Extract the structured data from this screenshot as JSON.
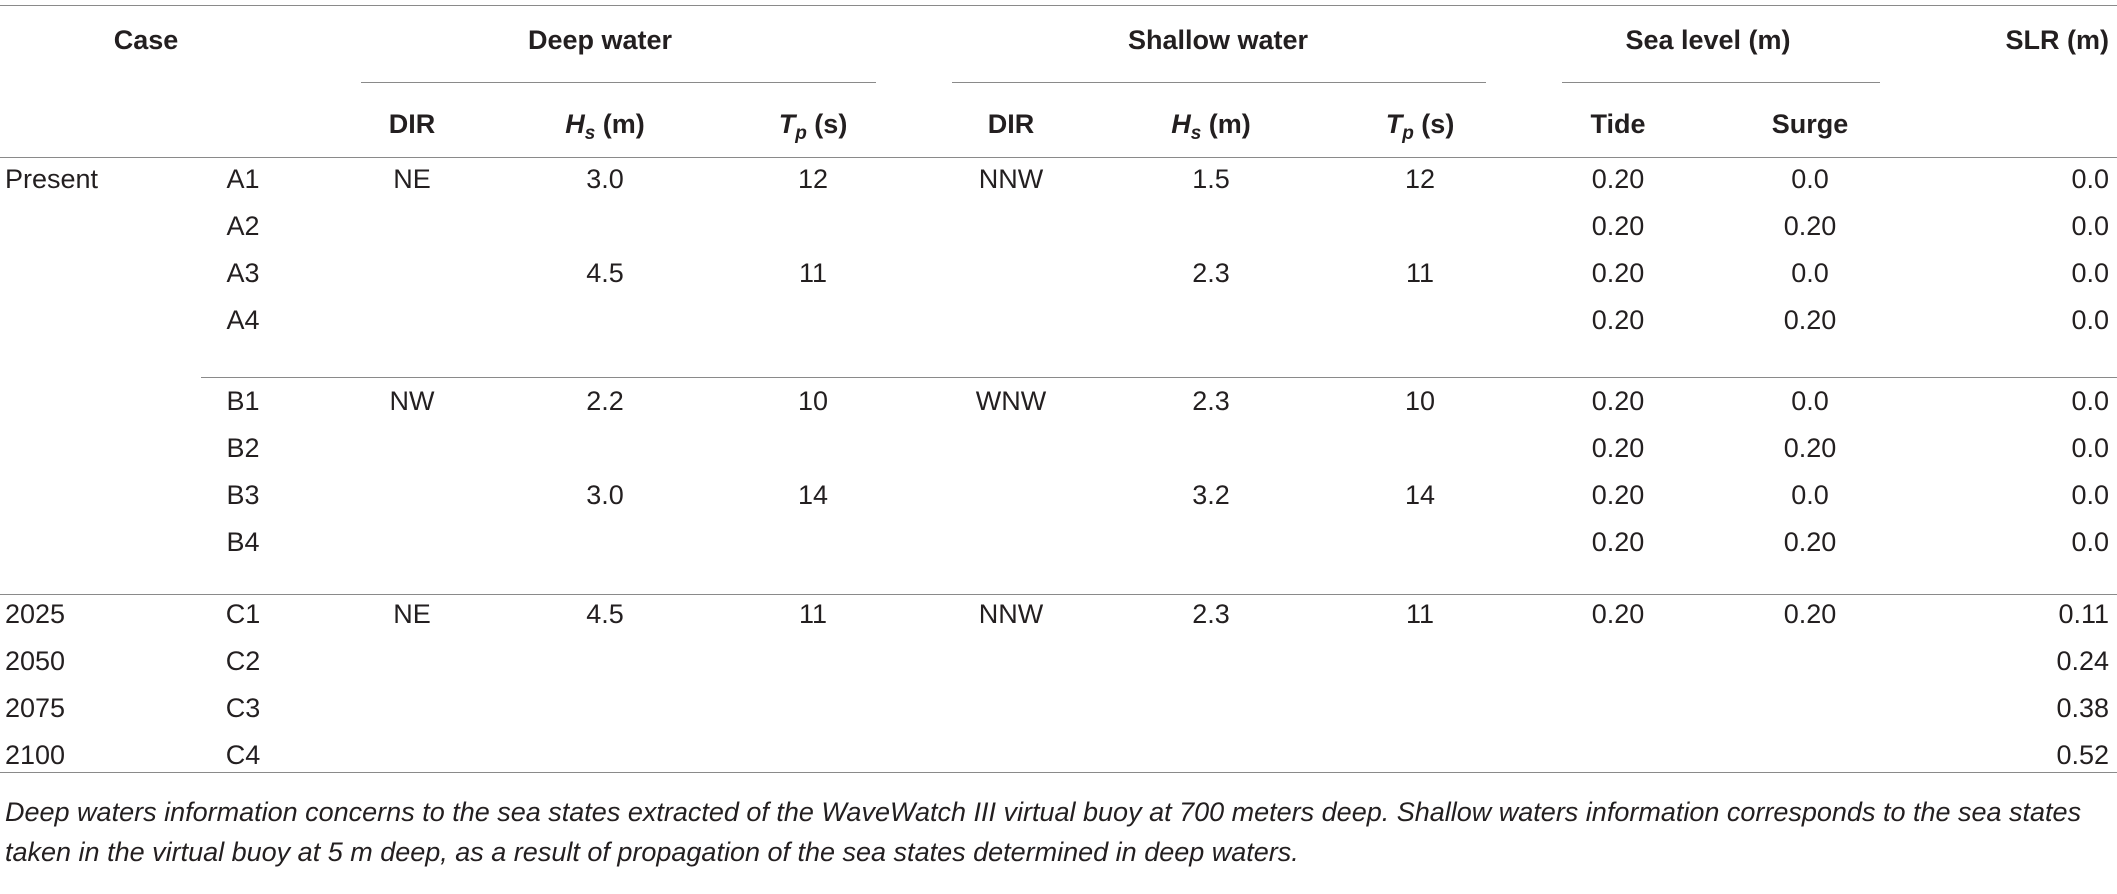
{
  "headers": {
    "case": "Case",
    "deep_water": "Deep water",
    "shallow_water": "Shallow water",
    "sea_level": "Sea level (m)",
    "slr": "SLR (m)",
    "dir": "DIR",
    "hs_var": "H",
    "hs_sub": "s",
    "hs_unit": " (m)",
    "tp_var": "T",
    "tp_sub": "p",
    "tp_unit": " (s)",
    "tide": "Tide",
    "surge": "Surge"
  },
  "rows": [
    {
      "period": "Present",
      "id": "A1",
      "deep_dir": "NE",
      "deep_hs": "3.0",
      "deep_tp": "12",
      "sh_dir": "NNW",
      "sh_hs": "1.5",
      "sh_tp": "12",
      "tide": "0.20",
      "surge": "0.0",
      "slr": "0.0"
    },
    {
      "period": "",
      "id": "A2",
      "deep_dir": "",
      "deep_hs": "",
      "deep_tp": "",
      "sh_dir": "",
      "sh_hs": "",
      "sh_tp": "",
      "tide": "0.20",
      "surge": "0.20",
      "slr": "0.0"
    },
    {
      "period": "",
      "id": "A3",
      "deep_dir": "",
      "deep_hs": "4.5",
      "deep_tp": "11",
      "sh_dir": "",
      "sh_hs": "2.3",
      "sh_tp": "11",
      "tide": "0.20",
      "surge": "0.0",
      "slr": "0.0"
    },
    {
      "period": "",
      "id": "A4",
      "deep_dir": "",
      "deep_hs": "",
      "deep_tp": "",
      "sh_dir": "",
      "sh_hs": "",
      "sh_tp": "",
      "tide": "0.20",
      "surge": "0.20",
      "slr": "0.0"
    },
    {
      "period": "",
      "id": "B1",
      "deep_dir": "NW",
      "deep_hs": "2.2",
      "deep_tp": "10",
      "sh_dir": "WNW",
      "sh_hs": "2.3",
      "sh_tp": "10",
      "tide": "0.20",
      "surge": "0.0",
      "slr": "0.0"
    },
    {
      "period": "",
      "id": "B2",
      "deep_dir": "",
      "deep_hs": "",
      "deep_tp": "",
      "sh_dir": "",
      "sh_hs": "",
      "sh_tp": "",
      "tide": "0.20",
      "surge": "0.20",
      "slr": "0.0"
    },
    {
      "period": "",
      "id": "B3",
      "deep_dir": "",
      "deep_hs": "3.0",
      "deep_tp": "14",
      "sh_dir": "",
      "sh_hs": "3.2",
      "sh_tp": "14",
      "tide": "0.20",
      "surge": "0.0",
      "slr": "0.0"
    },
    {
      "period": "",
      "id": "B4",
      "deep_dir": "",
      "deep_hs": "",
      "deep_tp": "",
      "sh_dir": "",
      "sh_hs": "",
      "sh_tp": "",
      "tide": "0.20",
      "surge": "0.20",
      "slr": "0.0"
    },
    {
      "period": "2025",
      "id": "C1",
      "deep_dir": "NE",
      "deep_hs": "4.5",
      "deep_tp": "11",
      "sh_dir": "NNW",
      "sh_hs": "2.3",
      "sh_tp": "11",
      "tide": "0.20",
      "surge": "0.20",
      "slr": "0.11"
    },
    {
      "period": "2050",
      "id": "C2",
      "deep_dir": "",
      "deep_hs": "",
      "deep_tp": "",
      "sh_dir": "",
      "sh_hs": "",
      "sh_tp": "",
      "tide": "",
      "surge": "",
      "slr": "0.24"
    },
    {
      "period": "2075",
      "id": "C3",
      "deep_dir": "",
      "deep_hs": "",
      "deep_tp": "",
      "sh_dir": "",
      "sh_hs": "",
      "sh_tp": "",
      "tide": "",
      "surge": "",
      "slr": "0.38"
    },
    {
      "period": "2100",
      "id": "C4",
      "deep_dir": "",
      "deep_hs": "",
      "deep_tp": "",
      "sh_dir": "",
      "sh_hs": "",
      "sh_tp": "",
      "tide": "",
      "surge": "",
      "slr": "0.52"
    }
  ],
  "footnote": "Deep waters information concerns to the sea states extracted of the WaveWatch III virtual buoy at 700 meters deep. Shallow waters information corresponds to the sea states taken in the virtual buoy at 5 m deep, as a result of propagation of the sea states determined in deep waters."
}
